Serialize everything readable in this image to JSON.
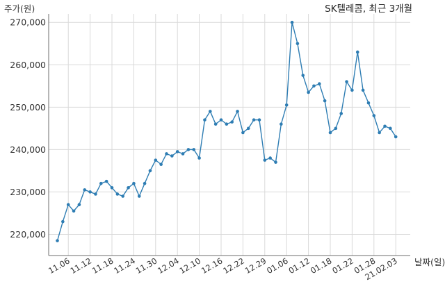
{
  "chart_data": {
    "type": "line",
    "title": "SK텔레콤, 최근 3개월",
    "ylabel": "주가(원)",
    "xlabel": "날짜(일)",
    "ylim": [
      215000,
      272000
    ],
    "yticks": [
      220000,
      230000,
      240000,
      250000,
      260000,
      270000
    ],
    "ytick_labels": [
      "220,000",
      "230,000",
      "240,000",
      "250,000",
      "260,000",
      "270,000"
    ],
    "xtick_labels": [
      "11.06",
      "11.12",
      "11.18",
      "11.24",
      "11.30",
      "12.04",
      "12.10",
      "12.16",
      "12.22",
      "12.29",
      "01.06",
      "01.12",
      "01.18",
      "01.22",
      "01.28",
      "21.02.03"
    ],
    "xtick_indices": [
      2,
      6,
      10,
      14,
      18,
      22,
      26,
      30,
      34,
      38,
      42,
      46,
      50,
      54,
      58,
      62
    ],
    "grid": true,
    "line_color": "#2e7db3",
    "series": [
      {
        "values": [
          218500,
          223000,
          227000,
          225500,
          227000,
          230500,
          230000,
          229500,
          232000,
          232500,
          231000,
          229500,
          229000,
          231000,
          232000,
          229000,
          232000,
          235000,
          237500,
          236500,
          239000,
          238500,
          239500,
          239000,
          240000,
          240000,
          238000,
          247000,
          249000,
          246000,
          247000,
          246000,
          246500,
          249000,
          244000,
          245000,
          247000,
          247000,
          237500,
          238000,
          237000,
          246000,
          250500,
          270000,
          265000,
          257500,
          253500,
          255000,
          255500,
          251500,
          244000,
          245000,
          248500,
          256000,
          254000,
          263000,
          254000,
          251000,
          248000,
          244000,
          245500,
          245000,
          243000
        ]
      }
    ]
  }
}
